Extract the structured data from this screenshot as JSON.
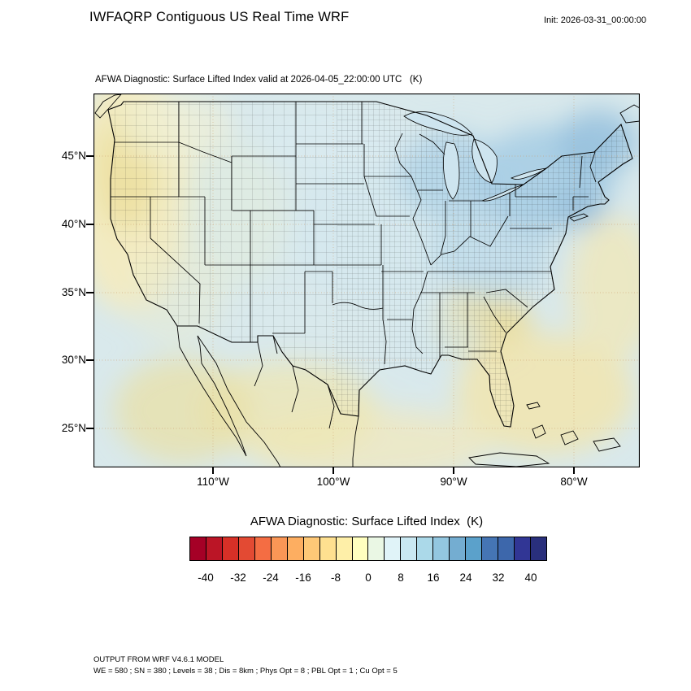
{
  "header": {
    "title": "IWFAQRP Contiguous US Real Time WRF",
    "init_label": "Init: 2026-03-31_00:00:00"
  },
  "map": {
    "subtitle": "AFWA Diagnostic: Surface Lifted Index valid at 2026-04-05_22:00:00 UTC   (K)",
    "lat_tick_labels": [
      "45°N",
      "40°N",
      "35°N",
      "30°N",
      "25°N"
    ],
    "lon_tick_labels": [
      "110°W",
      "100°W",
      "90°W",
      "80°W"
    ]
  },
  "colorbar": {
    "title": "AFWA Diagnostic: Surface Lifted Index  (K)",
    "tick_labels": [
      "-40",
      "-32",
      "-24",
      "-16",
      "-8",
      "0",
      "8",
      "16",
      "24",
      "32",
      "40"
    ],
    "segment_colors": [
      "#a50026",
      "#bb1526",
      "#d73027",
      "#e34a33",
      "#f46d43",
      "#fa9656",
      "#fdae61",
      "#fec877",
      "#fee090",
      "#feefa8",
      "#ffffbf",
      "#eaf7e4",
      "#e0f3f8",
      "#c9e8f2",
      "#abd9e9",
      "#93c7e0",
      "#74add1",
      "#5ba1cb",
      "#4575b4",
      "#3d67ab",
      "#313695",
      "#292f7c"
    ]
  },
  "footer": {
    "line1": "OUTPUT FROM WRF V4.6.1 MODEL",
    "line2": "WE = 580 ; SN = 380 ; Levels = 38 ; Dis = 8km ; Phys Opt = 8 ; PBL Opt = 1 ; Cu Opt = 5"
  },
  "chart_data": {
    "type": "heatmap",
    "subtype": "filled-contour map of WRF model output over the contiguous US",
    "title": "AFWA Diagnostic: Surface Lifted Index valid at 2026-04-05_22:00:00 UTC (K)",
    "variable": "Surface Lifted Index",
    "units": "K",
    "model": {
      "name": "WRF V4.6.1",
      "run_label": "IWFAQRP Contiguous US Real Time WRF",
      "init_time": "2026-03-31_00:00:00",
      "valid_time": "2026-04-05_22:00:00 UTC",
      "grid_config": "WE = 580 ; SN = 380 ; Levels = 38 ; Dis = 8km ; Phys Opt = 8 ; PBL Opt = 1 ; Cu Opt = 5"
    },
    "x_axis": {
      "label": "longitude",
      "tick_labels": [
        "110°W",
        "100°W",
        "90°W",
        "80°W"
      ]
    },
    "y_axis": {
      "label": "latitude",
      "tick_labels": [
        "45°N",
        "40°N",
        "35°N",
        "30°N",
        "25°N"
      ]
    },
    "colorbar": {
      "orientation": "horizontal",
      "position": "bottom",
      "tick_values": [
        -40,
        -32,
        -24,
        -16,
        -8,
        0,
        8,
        16,
        24,
        32,
        40
      ],
      "n_segments": 22,
      "value_range": [
        -44,
        44
      ],
      "segment_step": 4,
      "palette": "red (negative / unstable) through pale yellow (near 0) to dark blue (positive / stable)"
    },
    "grid_on": true,
    "field_regions": [
      {
        "region": "Pacific Northwest and West Coast (WA/OR/N-CA)",
        "lifted_index_K": "-8 to 0",
        "fill": "pale yellow / cream"
      },
      {
        "region": "Great Basin and Rockies",
        "lifted_index_K": "0 to 8",
        "fill": "very pale blue"
      },
      {
        "region": "Central Plains and Midwest",
        "lifted_index_K": "0 to 8",
        "fill": "pale blue"
      },
      {
        "region": "Great Lakes and Northeast / New England",
        "lifted_index_K": "8 to 16",
        "fill": "light to medium blue"
      },
      {
        "region": "Ohio Valley / Appalachians",
        "lifted_index_K": "4 to 12",
        "fill": "light blue"
      },
      {
        "region": "Southeast (GA / SC / AL / FL)",
        "lifted_index_K": "-8 to 0",
        "fill": "yellow"
      },
      {
        "region": "Gulf of Mexico, south Texas and Mexico",
        "lifted_index_K": "-8 to 0",
        "fill": "pale yellow / cream"
      },
      {
        "region": "Subtropical western Atlantic (offshore east/southeast)",
        "lifted_index_K": "-8 to 0",
        "fill": "pale yellow / cream"
      }
    ]
  }
}
